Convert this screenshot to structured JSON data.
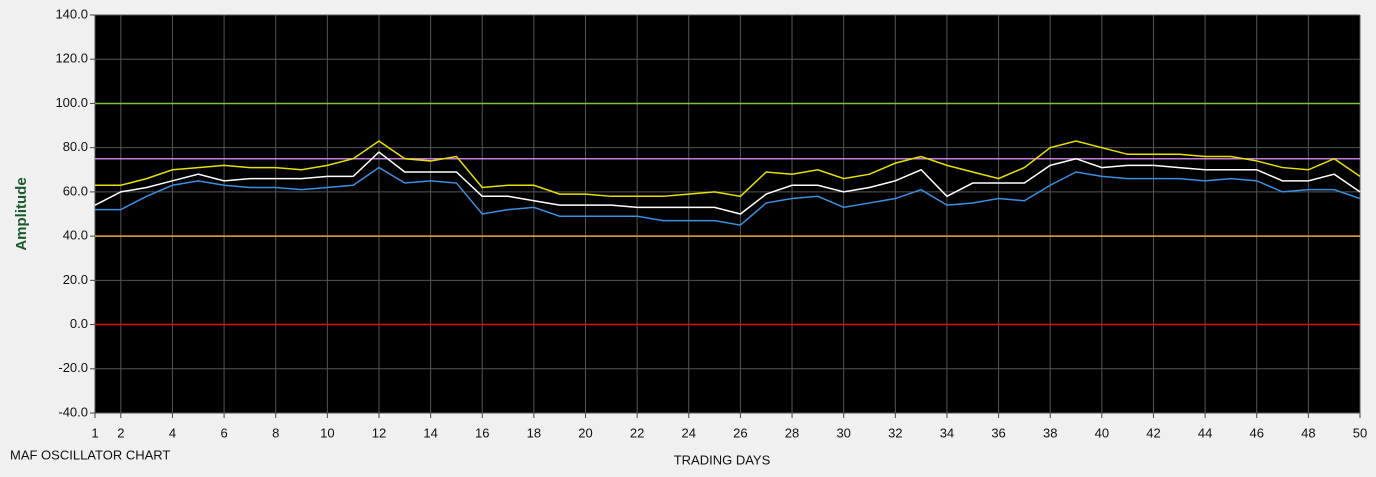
{
  "chart_data": {
    "type": "line",
    "title": "MAF OSCILLATOR CHART",
    "x_label": "TRADING DAYS",
    "y_label": "Amplitude",
    "x": [
      1,
      2,
      3,
      4,
      5,
      6,
      7,
      8,
      9,
      10,
      11,
      12,
      13,
      14,
      15,
      16,
      17,
      18,
      19,
      20,
      21,
      22,
      23,
      24,
      25,
      26,
      27,
      28,
      29,
      30,
      31,
      32,
      33,
      34,
      35,
      36,
      37,
      38,
      39,
      40,
      41,
      42,
      43,
      44,
      45,
      46,
      47,
      48,
      49,
      50
    ],
    "xlim": [
      1,
      50
    ],
    "xticks": [
      1,
      2,
      4,
      6,
      8,
      10,
      12,
      14,
      16,
      18,
      20,
      22,
      24,
      26,
      28,
      30,
      32,
      34,
      36,
      38,
      40,
      42,
      44,
      46,
      48,
      50
    ],
    "ylim": [
      -40,
      140
    ],
    "yticks": [
      {
        "value": -40,
        "label": "-40.0"
      },
      {
        "value": -20,
        "label": "-20.0"
      },
      {
        "value": 0,
        "label": "0.0"
      },
      {
        "value": 20,
        "label": "20.0"
      },
      {
        "value": 40,
        "label": "40.0"
      },
      {
        "value": 60,
        "label": "60.0"
      },
      {
        "value": 80,
        "label": "80.0"
      },
      {
        "value": 100,
        "label": "100.0"
      },
      {
        "value": 120,
        "label": "120.0"
      },
      {
        "value": 140,
        "label": "140.0"
      }
    ],
    "grid": true,
    "reference_lines": [
      {
        "value": 100,
        "color": "#7dc242"
      },
      {
        "value": 75,
        "color": "#c77ddb"
      },
      {
        "value": 40,
        "color": "#f0a640"
      },
      {
        "value": 0,
        "color": "#e01010"
      }
    ],
    "series": [
      {
        "color": "#e8e000",
        "values": [
          63,
          63,
          66,
          70,
          71,
          72,
          71,
          71,
          70,
          72,
          75,
          83,
          75,
          74,
          76,
          62,
          63,
          63,
          59,
          59,
          58,
          58,
          58,
          59,
          60,
          58,
          69,
          68,
          70,
          66,
          68,
          73,
          76,
          72,
          69,
          66,
          71,
          80,
          83,
          80,
          77,
          77,
          77,
          76,
          76,
          74,
          71,
          70,
          75,
          67
        ]
      },
      {
        "color": "#ffffff",
        "values": [
          54,
          60,
          62,
          65,
          68,
          65,
          66,
          66,
          66,
          67,
          67,
          78,
          69,
          69,
          69,
          58,
          58,
          56,
          54,
          54,
          54,
          53,
          53,
          53,
          53,
          50,
          59,
          63,
          63,
          60,
          62,
          65,
          70,
          58,
          64,
          64,
          64,
          72,
          75,
          71,
          72,
          72,
          71,
          70,
          70,
          70,
          65,
          65,
          68,
          60
        ]
      },
      {
        "color": "#3a8fe0",
        "values": [
          52,
          52,
          58,
          63,
          65,
          63,
          62,
          62,
          61,
          62,
          63,
          71,
          64,
          65,
          64,
          50,
          52,
          53,
          49,
          49,
          49,
          49,
          47,
          47,
          47,
          45,
          55,
          57,
          58,
          53,
          55,
          57,
          61,
          54,
          55,
          57,
          56,
          63,
          69,
          67,
          66,
          66,
          66,
          65,
          66,
          65,
          60,
          61,
          61,
          57
        ]
      }
    ]
  }
}
